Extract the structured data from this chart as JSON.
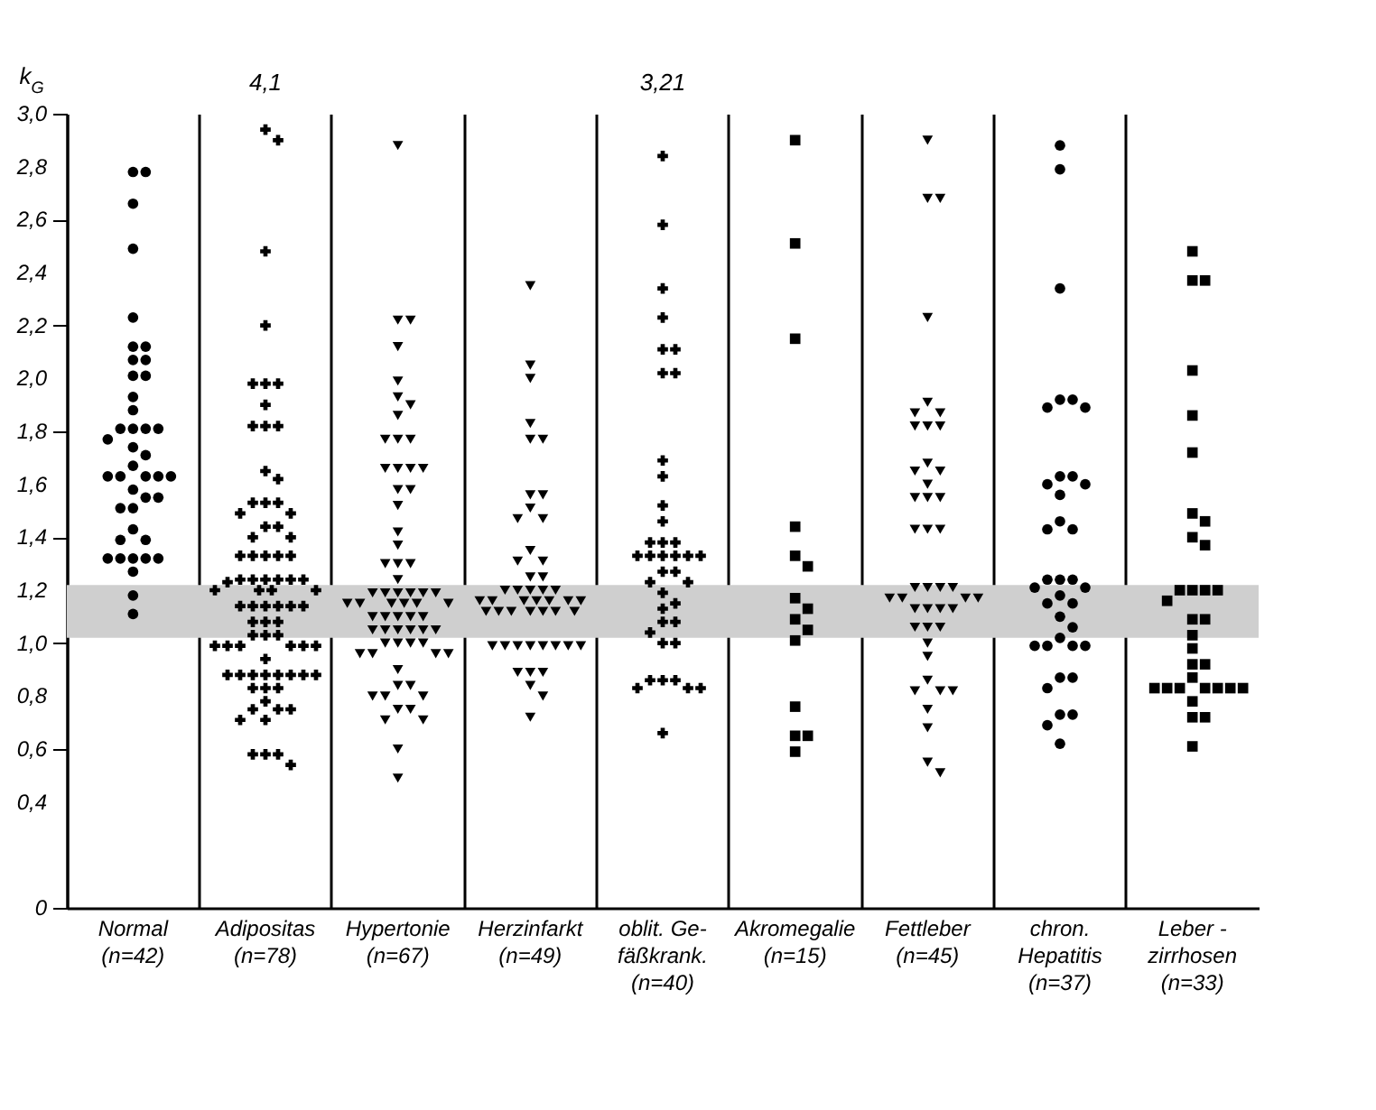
{
  "chart_data": {
    "type": "scatter",
    "ylabel": "k$_{G}$",
    "categories": [
      "Normal\n\n(n=42)",
      "Adipositas\n\n(n=78)",
      "Hypertonie\n\n(n=67)",
      "Herzinfarkt\n\n(n=49)",
      "oblit. Ge-\nfäßkrank.\n(n=40)",
      "Akromegalie\n\n(n=15)",
      "Fettleber\n\n(n=45)",
      "chron.\nHepatitis\n(n=37)",
      "Leber -\nzirrhosen\n(n=33)"
    ],
    "ylim": [
      0,
      3.0
    ],
    "yticks": [
      {
        "value": 0,
        "label": "0"
      },
      {
        "value": 0.4,
        "label": "0,4"
      },
      {
        "value": 0.6,
        "label": "0,6"
      },
      {
        "value": 0.8,
        "label": "0,8"
      },
      {
        "value": 1.0,
        "label": "1,0"
      },
      {
        "value": 1.2,
        "label": "1,2"
      },
      {
        "value": 1.4,
        "label": "1,4"
      },
      {
        "value": 1.6,
        "label": "1,6"
      },
      {
        "value": 1.8,
        "label": "1,8"
      },
      {
        "value": 2.0,
        "label": "2,0"
      },
      {
        "value": 2.2,
        "label": "2,2"
      },
      {
        "value": 2.4,
        "label": "2,4"
      },
      {
        "value": 2.6,
        "label": "2,6"
      },
      {
        "value": 2.8,
        "label": "2,8"
      },
      {
        "value": 3.0,
        "label": "3,0"
      }
    ],
    "grid": "x",
    "bands": [
      {
        "axis": "y",
        "from": 1.02,
        "to": 1.22,
        "color": "#cfcfcf"
      }
    ],
    "annotations": [
      "4,1",
      "3,21"
    ],
    "series": [
      {
        "color": "#000000",
        "marker": "circle",
        "x": [
          "Normal\n\n(n=42)",
          "Normal\n\n(n=42)",
          "Normal\n\n(n=42)",
          "Normal\n\n(n=42)",
          "Normal\n\n(n=42)",
          "Normal\n\n(n=42)",
          "Normal\n\n(n=42)",
          "Normal\n\n(n=42)",
          "Normal\n\n(n=42)",
          "Normal\n\n(n=42)",
          "Normal\n\n(n=42)",
          "Normal\n\n(n=42)",
          "Normal\n\n(n=42)",
          "Normal\n\n(n=42)",
          "Normal\n\n(n=42)",
          "Normal\n\n(n=42)",
          "Normal\n\n(n=42)",
          "Normal\n\n(n=42)",
          "Normal\n\n(n=42)",
          "Normal\n\n(n=42)",
          "Normal\n\n(n=42)",
          "Normal\n\n(n=42)",
          "Normal\n\n(n=42)",
          "Normal\n\n(n=42)",
          "Normal\n\n(n=42)",
          "Normal\n\n(n=42)",
          "Normal\n\n(n=42)",
          "Normal\n\n(n=42)",
          "Normal\n\n(n=42)",
          "Normal\n\n(n=42)",
          "Normal\n\n(n=42)",
          "Normal\n\n(n=42)",
          "Normal\n\n(n=42)",
          "Normal\n\n(n=42)",
          "Normal\n\n(n=42)",
          "Normal\n\n(n=42)",
          "Normal\n\n(n=42)",
          "Normal\n\n(n=42)",
          "Normal\n\n(n=42)",
          "Normal\n\n(n=42)",
          "Normal\n\n(n=42)",
          "Normal\n\n(n=42)"
        ],
        "values": [
          2.78,
          2.78,
          2.66,
          2.49,
          2.23,
          2.12,
          2.12,
          2.07,
          2.07,
          2.01,
          2.01,
          1.93,
          1.88,
          1.81,
          1.81,
          1.81,
          1.81,
          1.77,
          1.74,
          1.71,
          1.67,
          1.63,
          1.63,
          1.63,
          1.63,
          1.63,
          1.58,
          1.55,
          1.51,
          1.43,
          1.39,
          1.39,
          1.32,
          1.32,
          1.32,
          1.32,
          1.32,
          1.27,
          1.18,
          1.11,
          1.51,
          1.55
        ]
      },
      {
        "color": "#000000",
        "marker": "cross",
        "x": [
          "Adipositas\n\n(n=78)",
          "Adipositas\n\n(n=78)",
          "Adipositas\n\n(n=78)",
          "Adipositas\n\n(n=78)",
          "Adipositas\n\n(n=78)",
          "Adipositas\n\n(n=78)",
          "Adipositas\n\n(n=78)",
          "Adipositas\n\n(n=78)",
          "Adipositas\n\n(n=78)",
          "Adipositas\n\n(n=78)",
          "Adipositas\n\n(n=78)",
          "Adipositas\n\n(n=78)",
          "Adipositas\n\n(n=78)",
          "Adipositas\n\n(n=78)",
          "Adipositas\n\n(n=78)",
          "Adipositas\n\n(n=78)",
          "Adipositas\n\n(n=78)",
          "Adipositas\n\n(n=78)",
          "Adipositas\n\n(n=78)",
          "Adipositas\n\n(n=78)",
          "Adipositas\n\n(n=78)",
          "Adipositas\n\n(n=78)",
          "Adipositas\n\n(n=78)",
          "Adipositas\n\n(n=78)",
          "Adipositas\n\n(n=78)",
          "Adipositas\n\n(n=78)",
          "Adipositas\n\n(n=78)",
          "Adipositas\n\n(n=78)",
          "Adipositas\n\n(n=78)",
          "Adipositas\n\n(n=78)",
          "Adipositas\n\n(n=78)",
          "Adipositas\n\n(n=78)",
          "Adipositas\n\n(n=78)",
          "Adipositas\n\n(n=78)",
          "Adipositas\n\n(n=78)",
          "Adipositas\n\n(n=78)",
          "Adipositas\n\n(n=78)",
          "Adipositas\n\n(n=78)",
          "Adipositas\n\n(n=78)",
          "Adipositas\n\n(n=78)",
          "Adipositas\n\n(n=78)",
          "Adipositas\n\n(n=78)",
          "Adipositas\n\n(n=78)",
          "Adipositas\n\n(n=78)",
          "Adipositas\n\n(n=78)",
          "Adipositas\n\n(n=78)",
          "Adipositas\n\n(n=78)",
          "Adipositas\n\n(n=78)",
          "Adipositas\n\n(n=78)",
          "Adipositas\n\n(n=78)",
          "Adipositas\n\n(n=78)",
          "Adipositas\n\n(n=78)",
          "Adipositas\n\n(n=78)",
          "Adipositas\n\n(n=78)",
          "Adipositas\n\n(n=78)",
          "Adipositas\n\n(n=78)",
          "Adipositas\n\n(n=78)",
          "Adipositas\n\n(n=78)",
          "Adipositas\n\n(n=78)",
          "Adipositas\n\n(n=78)",
          "Adipositas\n\n(n=78)",
          "Adipositas\n\n(n=78)",
          "Adipositas\n\n(n=78)",
          "Adipositas\n\n(n=78)",
          "Adipositas\n\n(n=78)",
          "Adipositas\n\n(n=78)",
          "Adipositas\n\n(n=78)",
          "Adipositas\n\n(n=78)",
          "Adipositas\n\n(n=78)",
          "Adipositas\n\n(n=78)",
          "Adipositas\n\n(n=78)",
          "Adipositas\n\n(n=78)",
          "Adipositas\n\n(n=78)",
          "Adipositas\n\n(n=78)",
          "Adipositas\n\n(n=78)",
          "Adipositas\n\n(n=78)",
          "Adipositas\n\n(n=78)",
          "Adipositas\n\n(n=78)"
        ],
        "values": [
          2.94,
          2.9,
          2.48,
          2.2,
          1.98,
          1.98,
          1.98,
          1.9,
          1.82,
          1.82,
          1.82,
          1.65,
          1.62,
          1.53,
          1.53,
          1.53,
          1.49,
          1.49,
          1.44,
          1.44,
          1.4,
          1.4,
          1.33,
          1.33,
          1.33,
          1.33,
          1.33,
          1.24,
          1.24,
          1.24,
          1.24,
          1.24,
          1.24,
          1.23,
          1.2,
          1.2,
          1.2,
          1.2,
          1.14,
          1.14,
          1.14,
          1.14,
          1.14,
          1.14,
          1.08,
          1.08,
          1.08,
          1.03,
          1.03,
          1.03,
          0.99,
          0.99,
          0.99,
          0.99,
          0.99,
          0.99,
          0.94,
          0.88,
          0.88,
          0.88,
          0.88,
          0.88,
          0.88,
          0.88,
          0.88,
          0.83,
          0.83,
          0.83,
          0.78,
          0.75,
          0.75,
          0.75,
          0.71,
          0.71,
          0.58,
          0.58,
          0.58,
          0.54
        ]
      },
      {
        "color": "#000000",
        "marker": "triangle",
        "x": [
          "Hypertonie\n\n(n=67)",
          "Hypertonie\n\n(n=67)",
          "Hypertonie\n\n(n=67)",
          "Hypertonie\n\n(n=67)",
          "Hypertonie\n\n(n=67)",
          "Hypertonie\n\n(n=67)",
          "Hypertonie\n\n(n=67)",
          "Hypertonie\n\n(n=67)",
          "Hypertonie\n\n(n=67)",
          "Hypertonie\n\n(n=67)",
          "Hypertonie\n\n(n=67)",
          "Hypertonie\n\n(n=67)",
          "Hypertonie\n\n(n=67)",
          "Hypertonie\n\n(n=67)",
          "Hypertonie\n\n(n=67)",
          "Hypertonie\n\n(n=67)",
          "Hypertonie\n\n(n=67)",
          "Hypertonie\n\n(n=67)",
          "Hypertonie\n\n(n=67)",
          "Hypertonie\n\n(n=67)",
          "Hypertonie\n\n(n=67)",
          "Hypertonie\n\n(n=67)",
          "Hypertonie\n\n(n=67)",
          "Hypertonie\n\n(n=67)",
          "Hypertonie\n\n(n=67)",
          "Hypertonie\n\n(n=67)",
          "Hypertonie\n\n(n=67)",
          "Hypertonie\n\n(n=67)",
          "Hypertonie\n\n(n=67)",
          "Hypertonie\n\n(n=67)",
          "Hypertonie\n\n(n=67)",
          "Hypertonie\n\n(n=67)",
          "Hypertonie\n\n(n=67)",
          "Hypertonie\n\n(n=67)",
          "Hypertonie\n\n(n=67)",
          "Hypertonie\n\n(n=67)",
          "Hypertonie\n\n(n=67)",
          "Hypertonie\n\n(n=67)",
          "Hypertonie\n\n(n=67)",
          "Hypertonie\n\n(n=67)",
          "Hypertonie\n\n(n=67)",
          "Hypertonie\n\n(n=67)",
          "Hypertonie\n\n(n=67)",
          "Hypertonie\n\n(n=67)",
          "Hypertonie\n\n(n=67)",
          "Hypertonie\n\n(n=67)",
          "Hypertonie\n\n(n=67)",
          "Hypertonie\n\n(n=67)",
          "Hypertonie\n\n(n=67)",
          "Hypertonie\n\n(n=67)",
          "Hypertonie\n\n(n=67)",
          "Hypertonie\n\n(n=67)",
          "Hypertonie\n\n(n=67)",
          "Hypertonie\n\n(n=67)",
          "Hypertonie\n\n(n=67)",
          "Hypertonie\n\n(n=67)",
          "Hypertonie\n\n(n=67)",
          "Hypertonie\n\n(n=67)",
          "Hypertonie\n\n(n=67)",
          "Hypertonie\n\n(n=67)",
          "Hypertonie\n\n(n=67)",
          "Hypertonie\n\n(n=67)",
          "Hypertonie\n\n(n=67)",
          "Hypertonie\n\n(n=67)",
          "Hypertonie\n\n(n=67)",
          "Hypertonie\n\n(n=67)",
          "Hypertonie\n\n(n=67)"
        ],
        "values": [
          2.88,
          2.22,
          2.22,
          2.12,
          1.99,
          1.93,
          1.9,
          1.86,
          1.77,
          1.77,
          1.77,
          1.66,
          1.66,
          1.66,
          1.66,
          1.58,
          1.58,
          1.52,
          1.42,
          1.37,
          1.3,
          1.3,
          1.3,
          1.24,
          1.19,
          1.19,
          1.19,
          1.19,
          1.19,
          1.19,
          1.15,
          1.15,
          1.15,
          1.15,
          1.15,
          1.15,
          1.1,
          1.1,
          1.1,
          1.1,
          1.1,
          1.05,
          1.05,
          1.05,
          1.05,
          1.05,
          1.05,
          1.0,
          1.0,
          1.0,
          1.0,
          0.96,
          0.96,
          0.96,
          0.96,
          0.9,
          0.84,
          0.84,
          0.8,
          0.8,
          0.8,
          0.75,
          0.75,
          0.71,
          0.71,
          0.6,
          0.49
        ]
      },
      {
        "color": "#000000",
        "marker": "triangle",
        "x": [
          "Herzinfarkt\n\n(n=49)",
          "Herzinfarkt\n\n(n=49)",
          "Herzinfarkt\n\n(n=49)",
          "Herzinfarkt\n\n(n=49)",
          "Herzinfarkt\n\n(n=49)",
          "Herzinfarkt\n\n(n=49)",
          "Herzinfarkt\n\n(n=49)",
          "Herzinfarkt\n\n(n=49)",
          "Herzinfarkt\n\n(n=49)",
          "Herzinfarkt\n\n(n=49)",
          "Herzinfarkt\n\n(n=49)",
          "Herzinfarkt\n\n(n=49)",
          "Herzinfarkt\n\n(n=49)",
          "Herzinfarkt\n\n(n=49)",
          "Herzinfarkt\n\n(n=49)",
          "Herzinfarkt\n\n(n=49)",
          "Herzinfarkt\n\n(n=49)",
          "Herzinfarkt\n\n(n=49)",
          "Herzinfarkt\n\n(n=49)",
          "Herzinfarkt\n\n(n=49)",
          "Herzinfarkt\n\n(n=49)",
          "Herzinfarkt\n\n(n=49)",
          "Herzinfarkt\n\n(n=49)",
          "Herzinfarkt\n\n(n=49)",
          "Herzinfarkt\n\n(n=49)",
          "Herzinfarkt\n\n(n=49)",
          "Herzinfarkt\n\n(n=49)",
          "Herzinfarkt\n\n(n=49)",
          "Herzinfarkt\n\n(n=49)",
          "Herzinfarkt\n\n(n=49)",
          "Herzinfarkt\n\n(n=49)",
          "Herzinfarkt\n\n(n=49)",
          "Herzinfarkt\n\n(n=49)",
          "Herzinfarkt\n\n(n=49)",
          "Herzinfarkt\n\n(n=49)",
          "Herzinfarkt\n\n(n=49)",
          "Herzinfarkt\n\n(n=49)",
          "Herzinfarkt\n\n(n=49)",
          "Herzinfarkt\n\n(n=49)",
          "Herzinfarkt\n\n(n=49)",
          "Herzinfarkt\n\n(n=49)",
          "Herzinfarkt\n\n(n=49)",
          "Herzinfarkt\n\n(n=49)",
          "Herzinfarkt\n\n(n=49)",
          "Herzinfarkt\n\n(n=49)",
          "Herzinfarkt\n\n(n=49)",
          "Herzinfarkt\n\n(n=49)",
          "Herzinfarkt\n\n(n=49)",
          "Herzinfarkt\n\n(n=49)"
        ],
        "values": [
          2.35,
          2.05,
          2.0,
          1.83,
          1.77,
          1.77,
          1.56,
          1.56,
          1.51,
          1.47,
          1.47,
          1.35,
          1.31,
          1.31,
          1.25,
          1.25,
          1.2,
          1.2,
          1.2,
          1.2,
          1.2,
          1.16,
          1.16,
          1.16,
          1.16,
          1.16,
          1.16,
          1.16,
          1.12,
          1.12,
          1.12,
          1.12,
          1.12,
          1.12,
          1.12,
          0.99,
          0.99,
          0.99,
          0.99,
          0.99,
          0.99,
          0.99,
          0.99,
          0.89,
          0.89,
          0.89,
          0.84,
          0.8,
          0.72
        ]
      },
      {
        "color": "#000000",
        "marker": "cross",
        "x": [
          "oblit. Ge-\nfäßkrank.\n(n=40)",
          "oblit. Ge-\nfäßkrank.\n(n=40)",
          "oblit. Ge-\nfäßkrank.\n(n=40)",
          "oblit. Ge-\nfäßkrank.\n(n=40)",
          "oblit. Ge-\nfäßkrank.\n(n=40)",
          "oblit. Ge-\nfäßkrank.\n(n=40)",
          "oblit. Ge-\nfäßkrank.\n(n=40)",
          "oblit. Ge-\nfäßkrank.\n(n=40)",
          "oblit. Ge-\nfäßkrank.\n(n=40)",
          "oblit. Ge-\nfäßkrank.\n(n=40)",
          "oblit. Ge-\nfäßkrank.\n(n=40)",
          "oblit. Ge-\nfäßkrank.\n(n=40)",
          "oblit. Ge-\nfäßkrank.\n(n=40)",
          "oblit. Ge-\nfäßkrank.\n(n=40)",
          "oblit. Ge-\nfäßkrank.\n(n=40)",
          "oblit. Ge-\nfäßkrank.\n(n=40)",
          "oblit. Ge-\nfäßkrank.\n(n=40)",
          "oblit. Ge-\nfäßkrank.\n(n=40)",
          "oblit. Ge-\nfäßkrank.\n(n=40)",
          "oblit. Ge-\nfäßkrank.\n(n=40)",
          "oblit. Ge-\nfäßkrank.\n(n=40)",
          "oblit. Ge-\nfäßkrank.\n(n=40)",
          "oblit. Ge-\nfäßkrank.\n(n=40)",
          "oblit. Ge-\nfäßkrank.\n(n=40)",
          "oblit. Ge-\nfäßkrank.\n(n=40)",
          "oblit. Ge-\nfäßkrank.\n(n=40)",
          "oblit. Ge-\nfäßkrank.\n(n=40)",
          "oblit. Ge-\nfäßkrank.\n(n=40)",
          "oblit. Ge-\nfäßkrank.\n(n=40)",
          "oblit. Ge-\nfäßkrank.\n(n=40)",
          "oblit. Ge-\nfäßkrank.\n(n=40)",
          "oblit. Ge-\nfäßkrank.\n(n=40)",
          "oblit. Ge-\nfäßkrank.\n(n=40)",
          "oblit. Ge-\nfäßkrank.\n(n=40)",
          "oblit. Ge-\nfäßkrank.\n(n=40)",
          "oblit. Ge-\nfäßkrank.\n(n=40)",
          "oblit. Ge-\nfäßkrank.\n(n=40)",
          "oblit. Ge-\nfäßkrank.\n(n=40)",
          "oblit. Ge-\nfäßkrank.\n(n=40)",
          "oblit. Ge-\nfäßkrank.\n(n=40)"
        ],
        "values": [
          2.84,
          2.58,
          2.34,
          2.23,
          2.11,
          2.11,
          2.02,
          2.02,
          1.69,
          1.63,
          1.52,
          1.46,
          1.38,
          1.38,
          1.38,
          1.33,
          1.33,
          1.33,
          1.33,
          1.33,
          1.33,
          1.27,
          1.27,
          1.23,
          1.23,
          1.19,
          1.15,
          1.13,
          1.08,
          1.08,
          1.04,
          1.0,
          1.0,
          0.86,
          0.86,
          0.86,
          0.83,
          0.83,
          0.83,
          0.66
        ]
      },
      {
        "color": "#000000",
        "marker": "square",
        "x": [
          "Akromegalie\n\n(n=15)",
          "Akromegalie\n\n(n=15)",
          "Akromegalie\n\n(n=15)",
          "Akromegalie\n\n(n=15)",
          "Akromegalie\n\n(n=15)",
          "Akromegalie\n\n(n=15)",
          "Akromegalie\n\n(n=15)",
          "Akromegalie\n\n(n=15)",
          "Akromegalie\n\n(n=15)",
          "Akromegalie\n\n(n=15)",
          "Akromegalie\n\n(n=15)",
          "Akromegalie\n\n(n=15)",
          "Akromegalie\n\n(n=15)",
          "Akromegalie\n\n(n=15)",
          "Akromegalie\n\n(n=15)"
        ],
        "values": [
          2.9,
          2.51,
          2.15,
          1.44,
          1.33,
          1.29,
          1.17,
          1.13,
          1.09,
          1.05,
          1.01,
          0.76,
          0.65,
          0.65,
          0.59
        ]
      },
      {
        "color": "#000000",
        "marker": "triangle",
        "x": [
          "Fettleber\n\n(n=45)",
          "Fettleber\n\n(n=45)",
          "Fettleber\n\n(n=45)",
          "Fettleber\n\n(n=45)",
          "Fettleber\n\n(n=45)",
          "Fettleber\n\n(n=45)",
          "Fettleber\n\n(n=45)",
          "Fettleber\n\n(n=45)",
          "Fettleber\n\n(n=45)",
          "Fettleber\n\n(n=45)",
          "Fettleber\n\n(n=45)",
          "Fettleber\n\n(n=45)",
          "Fettleber\n\n(n=45)",
          "Fettleber\n\n(n=45)",
          "Fettleber\n\n(n=45)",
          "Fettleber\n\n(n=45)",
          "Fettleber\n\n(n=45)",
          "Fettleber\n\n(n=45)",
          "Fettleber\n\n(n=45)",
          "Fettleber\n\n(n=45)",
          "Fettleber\n\n(n=45)",
          "Fettleber\n\n(n=45)",
          "Fettleber\n\n(n=45)",
          "Fettleber\n\n(n=45)",
          "Fettleber\n\n(n=45)",
          "Fettleber\n\n(n=45)",
          "Fettleber\n\n(n=45)",
          "Fettleber\n\n(n=45)",
          "Fettleber\n\n(n=45)",
          "Fettleber\n\n(n=45)",
          "Fettleber\n\n(n=45)",
          "Fettleber\n\n(n=45)",
          "Fettleber\n\n(n=45)",
          "Fettleber\n\n(n=45)",
          "Fettleber\n\n(n=45)",
          "Fettleber\n\n(n=45)",
          "Fettleber\n\n(n=45)",
          "Fettleber\n\n(n=45)",
          "Fettleber\n\n(n=45)",
          "Fettleber\n\n(n=45)",
          "Fettleber\n\n(n=45)",
          "Fettleber\n\n(n=45)",
          "Fettleber\n\n(n=45)",
          "Fettleber\n\n(n=45)",
          "Fettleber\n\n(n=45)"
        ],
        "values": [
          2.9,
          2.68,
          2.68,
          2.23,
          1.91,
          1.87,
          1.87,
          1.82,
          1.82,
          1.82,
          1.68,
          1.65,
          1.65,
          1.6,
          1.55,
          1.55,
          1.55,
          1.43,
          1.43,
          1.43,
          1.21,
          1.21,
          1.21,
          1.21,
          1.17,
          1.17,
          1.17,
          1.17,
          1.13,
          1.13,
          1.13,
          1.13,
          1.06,
          1.06,
          1.06,
          1.0,
          0.95,
          0.86,
          0.82,
          0.82,
          0.82,
          0.75,
          0.68,
          0.55,
          0.51
        ]
      },
      {
        "color": "#000000",
        "marker": "circle",
        "x": [
          "chron.\nHepatitis\n(n=37)",
          "chron.\nHepatitis\n(n=37)",
          "chron.\nHepatitis\n(n=37)",
          "chron.\nHepatitis\n(n=37)",
          "chron.\nHepatitis\n(n=37)",
          "chron.\nHepatitis\n(n=37)",
          "chron.\nHepatitis\n(n=37)",
          "chron.\nHepatitis\n(n=37)",
          "chron.\nHepatitis\n(n=37)",
          "chron.\nHepatitis\n(n=37)",
          "chron.\nHepatitis\n(n=37)",
          "chron.\nHepatitis\n(n=37)",
          "chron.\nHepatitis\n(n=37)",
          "chron.\nHepatitis\n(n=37)",
          "chron.\nHepatitis\n(n=37)",
          "chron.\nHepatitis\n(n=37)",
          "chron.\nHepatitis\n(n=37)",
          "chron.\nHepatitis\n(n=37)",
          "chron.\nHepatitis\n(n=37)",
          "chron.\nHepatitis\n(n=37)",
          "chron.\nHepatitis\n(n=37)",
          "chron.\nHepatitis\n(n=37)",
          "chron.\nHepatitis\n(n=37)",
          "chron.\nHepatitis\n(n=37)",
          "chron.\nHepatitis\n(n=37)",
          "chron.\nHepatitis\n(n=37)",
          "chron.\nHepatitis\n(n=37)",
          "chron.\nHepatitis\n(n=37)",
          "chron.\nHepatitis\n(n=37)",
          "chron.\nHepatitis\n(n=37)",
          "chron.\nHepatitis\n(n=37)",
          "chron.\nHepatitis\n(n=37)",
          "chron.\nHepatitis\n(n=37)",
          "chron.\nHepatitis\n(n=37)",
          "chron.\nHepatitis\n(n=37)",
          "chron.\nHepatitis\n(n=37)",
          "chron.\nHepatitis\n(n=37)"
        ],
        "values": [
          2.88,
          2.79,
          2.34,
          1.92,
          1.92,
          1.89,
          1.89,
          1.63,
          1.63,
          1.6,
          1.6,
          1.56,
          1.46,
          1.43,
          1.43,
          1.24,
          1.24,
          1.24,
          1.21,
          1.21,
          1.18,
          1.15,
          1.15,
          1.1,
          1.06,
          1.02,
          0.99,
          0.99,
          0.99,
          0.99,
          0.87,
          0.87,
          0.83,
          0.73,
          0.73,
          0.69,
          0.62
        ]
      },
      {
        "color": "#000000",
        "marker": "square",
        "x": [
          "Leber -\nzirrhosen\n(n=33)",
          "Leber -\nzirrhosen\n(n=33)",
          "Leber -\nzirrhosen\n(n=33)",
          "Leber -\nzirrhosen\n(n=33)",
          "Leber -\nzirrhosen\n(n=33)",
          "Leber -\nzirrhosen\n(n=33)",
          "Leber -\nzirrhosen\n(n=33)",
          "Leber -\nzirrhosen\n(n=33)",
          "Leber -\nzirrhosen\n(n=33)",
          "Leber -\nzirrhosen\n(n=33)",
          "Leber -\nzirrhosen\n(n=33)",
          "Leber -\nzirrhosen\n(n=33)",
          "Leber -\nzirrhosen\n(n=33)",
          "Leber -\nzirrhosen\n(n=33)",
          "Leber -\nzirrhosen\n(n=33)",
          "Leber -\nzirrhosen\n(n=33)",
          "Leber -\nzirrhosen\n(n=33)",
          "Leber -\nzirrhosen\n(n=33)",
          "Leber -\nzirrhosen\n(n=33)",
          "Leber -\nzirrhosen\n(n=33)",
          "Leber -\nzirrhosen\n(n=33)",
          "Leber -\nzirrhosen\n(n=33)",
          "Leber -\nzirrhosen\n(n=33)",
          "Leber -\nzirrhosen\n(n=33)",
          "Leber -\nzirrhosen\n(n=33)",
          "Leber -\nzirrhosen\n(n=33)",
          "Leber -\nzirrhosen\n(n=33)",
          "Leber -\nzirrhosen\n(n=33)",
          "Leber -\nzirrhosen\n(n=33)",
          "Leber -\nzirrhosen\n(n=33)",
          "Leber -\nzirrhosen\n(n=33)",
          "Leber -\nzirrhosen\n(n=33)",
          "Leber -\nzirrhosen\n(n=33)"
        ],
        "values": [
          2.48,
          2.37,
          2.37,
          2.03,
          1.86,
          1.72,
          1.49,
          1.46,
          1.4,
          1.37,
          1.2,
          1.2,
          1.2,
          1.2,
          1.16,
          1.09,
          1.09,
          1.03,
          0.98,
          0.92,
          0.92,
          0.87,
          0.83,
          0.83,
          0.83,
          0.83,
          0.83,
          0.83,
          0.83,
          0.78,
          0.72,
          0.72,
          0.61
        ]
      }
    ]
  }
}
